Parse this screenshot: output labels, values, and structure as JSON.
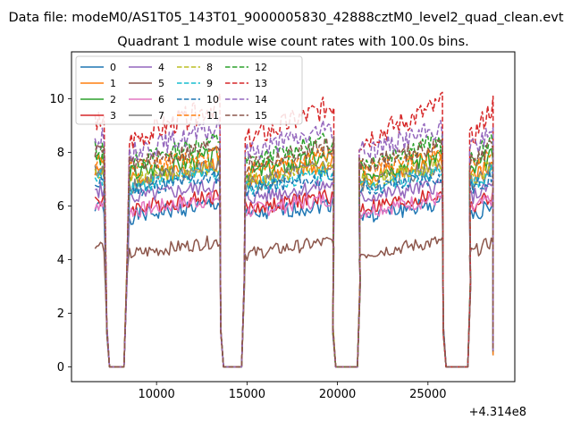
{
  "chart_data": {
    "type": "line",
    "suptitle": "Data file: modeM0/AS1T05_143T01_9000005830_42888cztM0_level2_quad_clean.evt",
    "title": "Quadrant 1 module wise count rates with 100.0s bins.",
    "xlabel": "",
    "ylabel": "",
    "x_offset_label": "+4.314e8",
    "xlim": [
      5300,
      29800
    ],
    "ylim": [
      -0.55,
      11.75
    ],
    "x_ticks": [
      10000,
      15000,
      20000,
      25000
    ],
    "x_tick_labels": [
      "10000",
      "15000",
      "20000",
      "25000"
    ],
    "y_ticks": [
      0,
      2,
      4,
      6,
      8,
      10
    ],
    "y_tick_labels": [
      "0",
      "2",
      "4",
      "6",
      "8",
      "10"
    ],
    "grid": false,
    "legend_position": "top-left",
    "legend_columns": 4,
    "segments": [
      [
        6600,
        7100
      ],
      [
        8500,
        13500
      ],
      [
        14900,
        19800
      ],
      [
        21200,
        25800
      ],
      [
        27300,
        28600
      ]
    ],
    "gaps": [
      [
        7400,
        8200
      ],
      [
        13700,
        14700
      ],
      [
        19900,
        21100
      ],
      [
        26000,
        27200
      ]
    ],
    "series": [
      {
        "name": "0",
        "color": "#1f77b4",
        "dash": "solid",
        "level": 5.6,
        "slope": 0.5,
        "noise": 0.3,
        "seed": 1
      },
      {
        "name": "1",
        "color": "#ff7f0e",
        "dash": "solid",
        "level": 7.0,
        "slope": 0.6,
        "noise": 0.3,
        "seed": 2
      },
      {
        "name": "2",
        "color": "#2ca02c",
        "dash": "solid",
        "level": 7.2,
        "slope": 0.7,
        "noise": 0.35,
        "seed": 3
      },
      {
        "name": "3",
        "color": "#d62728",
        "dash": "solid",
        "level": 5.9,
        "slope": 0.5,
        "noise": 0.3,
        "seed": 4
      },
      {
        "name": "4",
        "color": "#9467bd",
        "dash": "solid",
        "level": 6.3,
        "slope": 0.5,
        "noise": 0.3,
        "seed": 5
      },
      {
        "name": "5",
        "color": "#8c564b",
        "dash": "solid",
        "level": 4.2,
        "slope": 0.5,
        "noise": 0.25,
        "seed": 6
      },
      {
        "name": "6",
        "color": "#e377c2",
        "dash": "solid",
        "level": 5.8,
        "slope": 0.5,
        "noise": 0.3,
        "seed": 7
      },
      {
        "name": "7",
        "color": "#7f7f7f",
        "dash": "solid",
        "level": 6.8,
        "slope": 0.7,
        "noise": 0.35,
        "seed": 8
      },
      {
        "name": "8",
        "color": "#bcbd22",
        "dash": "dashed",
        "level": 6.9,
        "slope": 0.6,
        "noise": 0.3,
        "seed": 9
      },
      {
        "name": "9",
        "color": "#17becf",
        "dash": "dashed",
        "level": 6.7,
        "slope": 0.6,
        "noise": 0.3,
        "seed": 10
      },
      {
        "name": "10",
        "color": "#1f77b4",
        "dash": "dashed",
        "level": 6.6,
        "slope": 0.5,
        "noise": 0.3,
        "seed": 11
      },
      {
        "name": "11",
        "color": "#ff7f0e",
        "dash": "dashed",
        "level": 7.4,
        "slope": 0.6,
        "noise": 0.3,
        "seed": 12
      },
      {
        "name": "12",
        "color": "#2ca02c",
        "dash": "dashed",
        "level": 7.6,
        "slope": 0.9,
        "noise": 0.35,
        "seed": 13
      },
      {
        "name": "13",
        "color": "#d62728",
        "dash": "dashed",
        "level": 8.4,
        "slope": 1.4,
        "noise": 0.45,
        "seed": 14
      },
      {
        "name": "14",
        "color": "#9467bd",
        "dash": "dashed",
        "level": 8.0,
        "slope": 0.9,
        "noise": 0.4,
        "seed": 15
      },
      {
        "name": "15",
        "color": "#8c564b",
        "dash": "dashed",
        "level": 7.5,
        "slope": 0.8,
        "noise": 0.35,
        "seed": 16
      }
    ]
  }
}
